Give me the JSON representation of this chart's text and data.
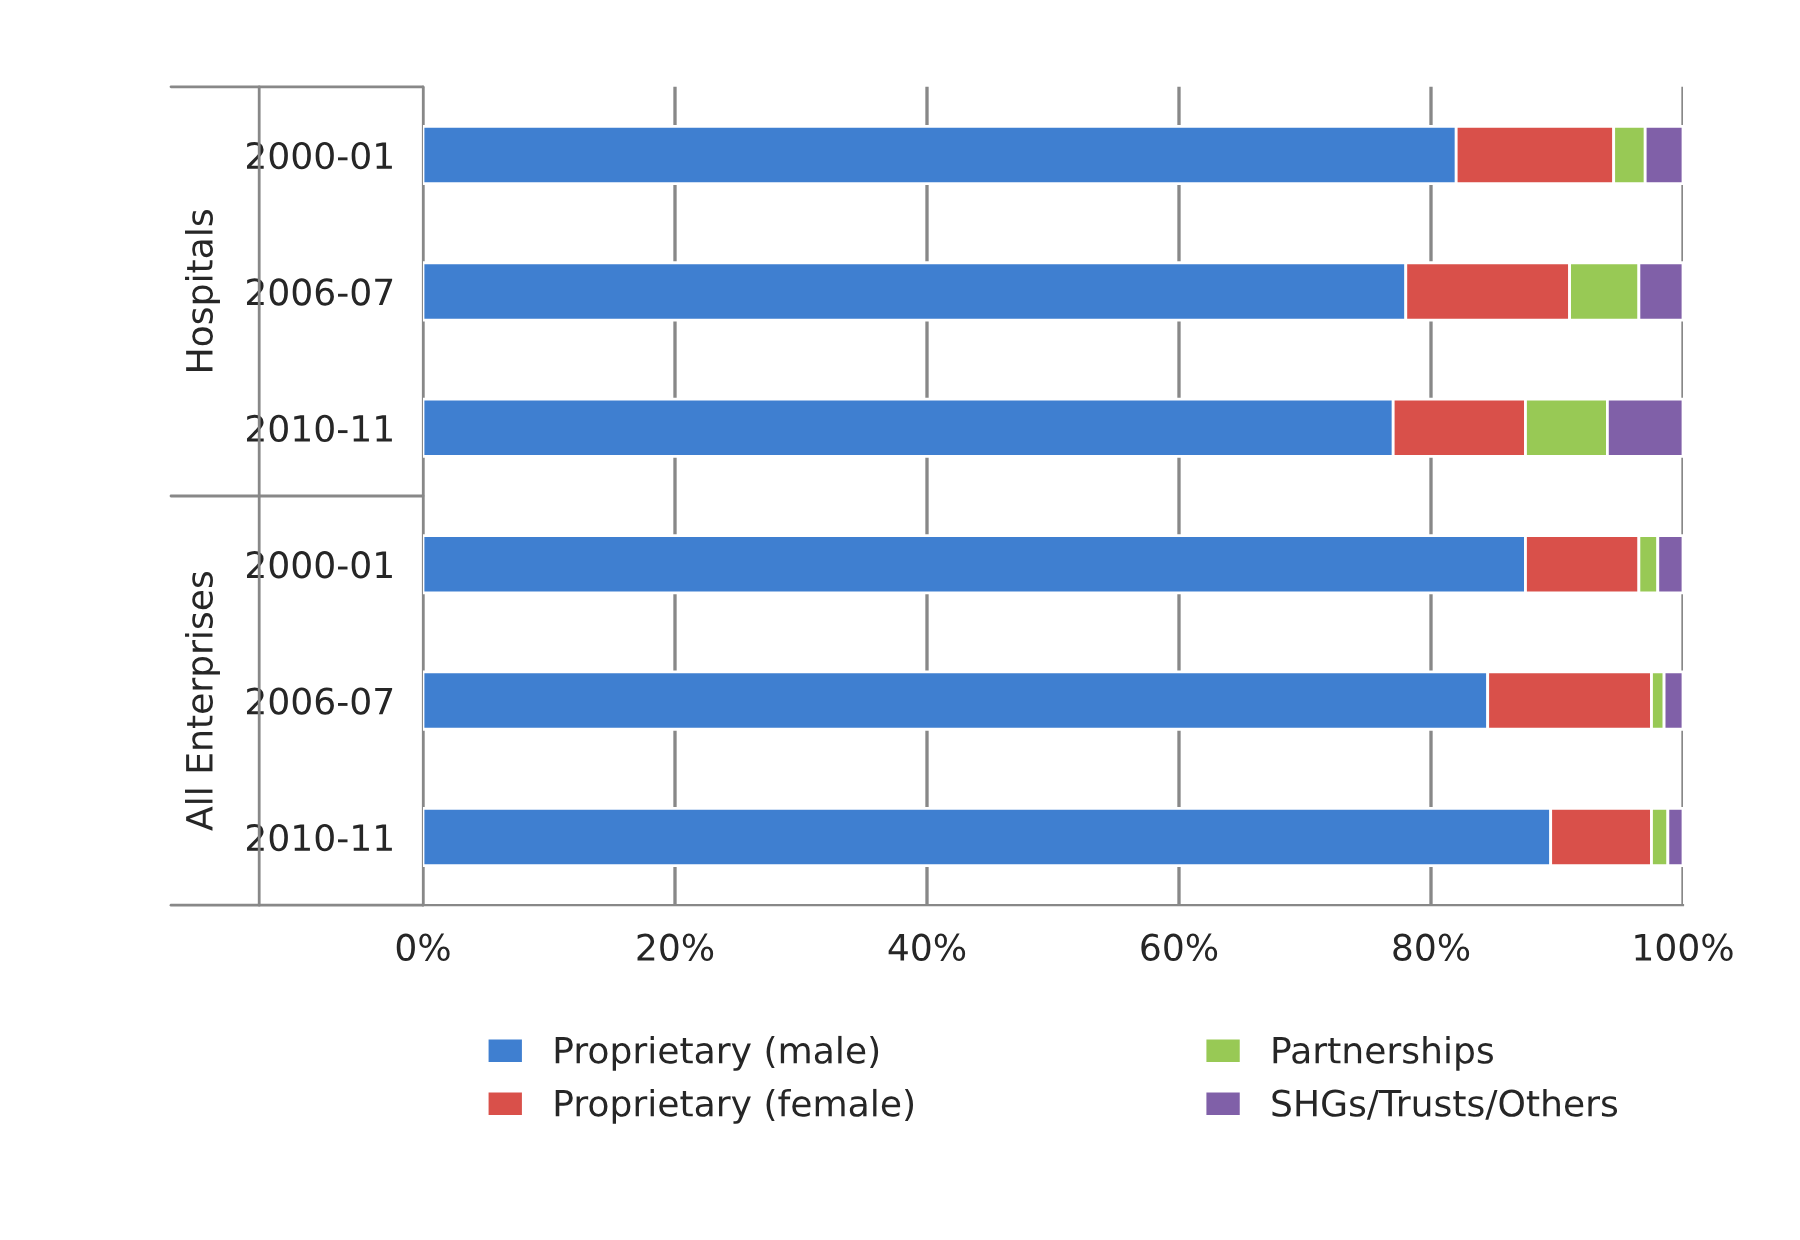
{
  "chart_data": {
    "type": "bar",
    "orientation": "horizontal",
    "stacked": true,
    "categories": [
      "2000-01",
      "2006-07",
      "2010-11",
      "2000-01",
      "2006-07",
      "2010-11"
    ],
    "series": [
      {
        "name": "Proprietary (male)",
        "color": "#3f7fd0",
        "values": [
          82,
          78,
          77,
          87.5,
          84.5,
          89.5
        ]
      },
      {
        "name": "Proprietary (female)",
        "color": "#d9504a",
        "values": [
          12.5,
          13,
          10.5,
          9,
          13,
          8
        ]
      },
      {
        "name": "Partnerships",
        "color": "#98c955",
        "values": [
          2.5,
          5.5,
          6.5,
          1.5,
          1,
          1.3
        ]
      },
      {
        "name": "SHGs/Trusts/Others",
        "color": "#8060a8",
        "values": [
          3,
          3.5,
          6,
          2,
          1.5,
          1.2
        ]
      }
    ],
    "annotations": [
      "Hospitals",
      "All Enterprises"
    ],
    "xlim": [
      0,
      100
    ],
    "xticks": [
      {
        "value": 0,
        "label": "0%"
      },
      {
        "value": 20,
        "label": "20%"
      },
      {
        "value": 40,
        "label": "40%"
      },
      {
        "value": 60,
        "label": "60%"
      },
      {
        "value": 80,
        "label": "80%"
      },
      {
        "value": 100,
        "label": "100%"
      }
    ],
    "grid": "x",
    "legend": "bottom"
  }
}
